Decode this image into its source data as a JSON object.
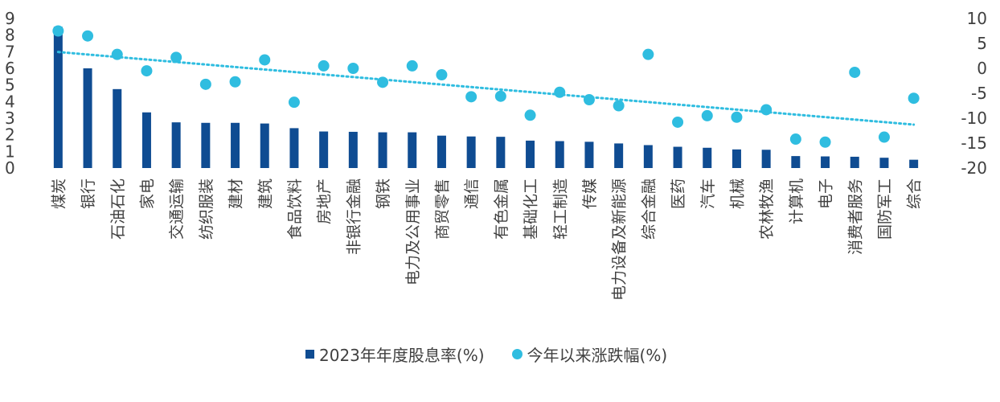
{
  "chart_data": {
    "type": "bar",
    "title": "",
    "categories": [
      "煤炭",
      "银行",
      "石油石化",
      "家电",
      "交通运输",
      "纺织服装",
      "建材",
      "建筑",
      "食品饮料",
      "房地产",
      "非银行金融",
      "钢铁",
      "电力及公用事业",
      "商贸零售",
      "通信",
      "有色金属",
      "基础化工",
      "轻工制造",
      "传媒",
      "电力设备及新能源",
      "综合金融",
      "医药",
      "汽车",
      "机械",
      "农林牧渔",
      "计算机",
      "电子",
      "消费者服务",
      "国防军工",
      "综合"
    ],
    "series": [
      {
        "name": "2023年年度股息率(%)",
        "type": "bar",
        "axis": "left",
        "color": "#0f4c92",
        "values": [
          8.5,
          6.0,
          4.75,
          3.35,
          2.75,
          2.72,
          2.72,
          2.68,
          2.4,
          2.2,
          2.18,
          2.15,
          2.15,
          1.95,
          1.9,
          1.88,
          1.65,
          1.62,
          1.58,
          1.48,
          1.38,
          1.28,
          1.22,
          1.12,
          1.1,
          0.72,
          0.7,
          0.68,
          0.62,
          0.5
        ]
      },
      {
        "name": "今年以来涨跌幅(%)",
        "type": "scatter",
        "axis": "right",
        "color": "#2fbde0",
        "values": [
          7.5,
          6.5,
          2.8,
          -0.5,
          2.2,
          -3.2,
          -2.7,
          1.7,
          -6.8,
          0.5,
          0,
          -2.8,
          0.5,
          -1.3,
          -5.7,
          -5.6,
          -9.4,
          -4.8,
          -6.3,
          -7.5,
          2.8,
          -10.8,
          -9.5,
          -9.8,
          -8.3,
          -14.2,
          -14.8,
          -0.8,
          -13.8,
          -6
        ]
      }
    ],
    "trendline": {
      "series": "今年以来涨跌幅(%)",
      "type": "linear",
      "style": "dotted"
    },
    "y_left": {
      "ylim": [
        0,
        9
      ],
      "ticks": [
        "0",
        "1",
        "2",
        "3",
        "4",
        "5",
        "6",
        "7",
        "8",
        "9"
      ]
    },
    "y_right": {
      "ylim": [
        -20,
        10
      ],
      "ticks": [
        "10",
        "5",
        "0",
        "-5",
        "-10",
        "-15",
        "-20"
      ]
    },
    "grid": false,
    "legend_position": "bottom"
  }
}
